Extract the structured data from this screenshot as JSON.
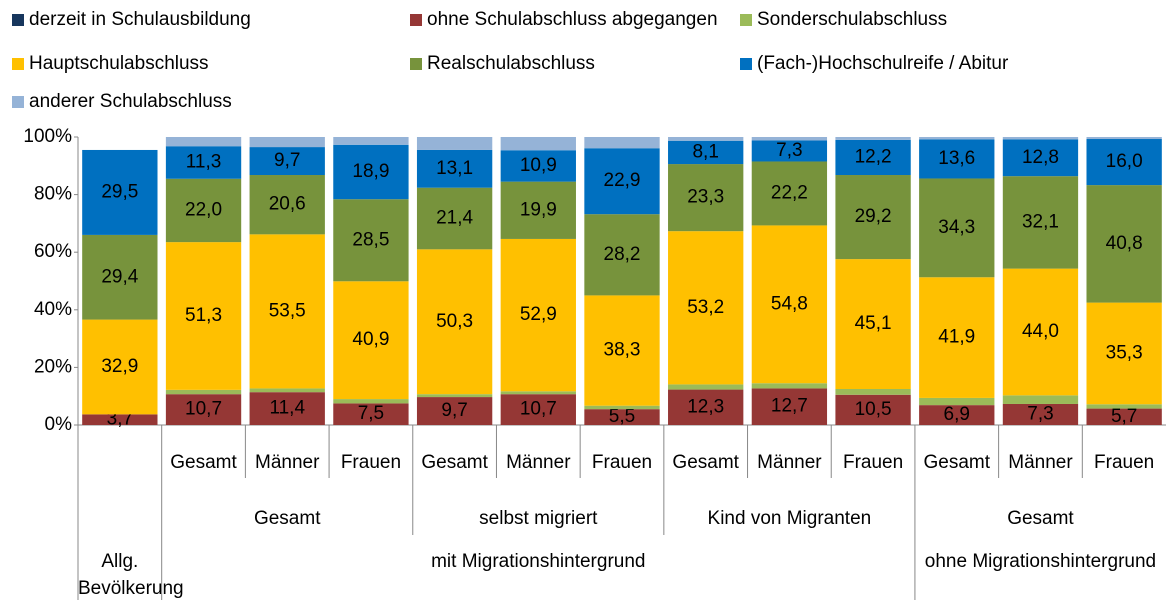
{
  "chart_data": {
    "type": "bar",
    "stacked": true,
    "categories": [
      null,
      "Gesamt",
      "Männer",
      "Frauen",
      "Gesamt",
      "Männer",
      "Frauen",
      "Gesamt",
      "Männer",
      "Frauen",
      "Gesamt",
      "Männer",
      "Frauen"
    ],
    "group_levels": [
      [
        {
          "label": null,
          "size": 1
        },
        {
          "label": "Gesamt",
          "size": 3
        },
        {
          "label": "selbst migriert",
          "size": 3
        },
        {
          "label": "Kind von Migranten",
          "size": 3
        },
        {
          "label": "Gesamt",
          "size": 3
        }
      ],
      [
        {
          "label": "Allg. Bevölkerung",
          "size": 1
        },
        {
          "label": "mit Migrationshintergrund",
          "size": 9
        },
        {
          "label": "ohne Migrationshintergrund",
          "size": 3
        }
      ]
    ],
    "series": [
      {
        "name": "derzeit in Schulausbildung",
        "color": "#17365d",
        "values": [
          0,
          0,
          0,
          0,
          0,
          0,
          0,
          0,
          0,
          0,
          0,
          0,
          0
        ]
      },
      {
        "name": "ohne Schulabschluss abgegangen",
        "color": "#953735",
        "values": [
          3.7,
          10.7,
          11.4,
          7.5,
          9.7,
          10.7,
          5.5,
          12.3,
          12.7,
          10.5,
          6.9,
          7.3,
          5.7
        ],
        "value_labels": [
          "3,7",
          "10,7",
          "11,4",
          "7,5",
          "9,7",
          "10,7",
          "5,5",
          "12,3",
          "12,7",
          "10,5",
          "6,9",
          "7,3",
          "5,7"
        ]
      },
      {
        "name": "Sonderschulabschluss",
        "color": "#9bbb59",
        "values": [
          0,
          1.5,
          1.3,
          1.5,
          1.0,
          1.0,
          1.2,
          1.8,
          1.8,
          2.0,
          2.5,
          3.0,
          1.5
        ]
      },
      {
        "name": "Hauptschulabschluss",
        "color": "#ffc000",
        "values": [
          32.9,
          51.3,
          53.5,
          40.9,
          50.3,
          52.9,
          38.3,
          53.2,
          54.8,
          45.1,
          41.9,
          44.0,
          35.3
        ],
        "value_labels": [
          "32,9",
          "51,3",
          "53,5",
          "40,9",
          "50,3",
          "52,9",
          "38,3",
          "53,2",
          "54,8",
          "45,1",
          "41,9",
          "44,0",
          "35,3"
        ]
      },
      {
        "name": "Realschulabschluss",
        "color": "#77933c",
        "values": [
          29.4,
          22.0,
          20.6,
          28.5,
          21.4,
          19.9,
          28.2,
          23.3,
          22.2,
          29.2,
          34.3,
          32.1,
          40.8
        ],
        "value_labels": [
          "29,4",
          "22,0",
          "20,6",
          "28,5",
          "21,4",
          "19,9",
          "28,2",
          "23,3",
          "22,2",
          "29,2",
          "34,3",
          "32,1",
          "40,8"
        ]
      },
      {
        "name": "(Fach-)Hochschulreife / Abitur",
        "color": "#0070c0",
        "values": [
          29.5,
          11.3,
          9.7,
          18.9,
          13.1,
          10.9,
          22.9,
          8.1,
          7.3,
          12.2,
          13.6,
          12.8,
          16.0
        ],
        "value_labels": [
          "29,5",
          "11,3",
          "9,7",
          "18,9",
          "13,1",
          "10,9",
          "22,9",
          "8,1",
          "7,3",
          "12,2",
          "13,6",
          "12,8",
          "16,0"
        ]
      },
      {
        "name": "anderer Schulabschluss",
        "color": "#95b3d7",
        "values": [
          0,
          3.2,
          3.5,
          2.7,
          4.5,
          4.6,
          3.9,
          1.3,
          1.2,
          1.0,
          0.8,
          0.8,
          0.7
        ]
      }
    ],
    "ylim": [
      0,
      100
    ],
    "yticks": [
      {
        "value": 0,
        "label": "0%"
      },
      {
        "value": 20,
        "label": "20%"
      },
      {
        "value": 40,
        "label": "40%"
      },
      {
        "value": 60,
        "label": "60%"
      },
      {
        "value": 80,
        "label": "80%"
      },
      {
        "value": 100,
        "label": "100%"
      }
    ],
    "legend": "top"
  }
}
